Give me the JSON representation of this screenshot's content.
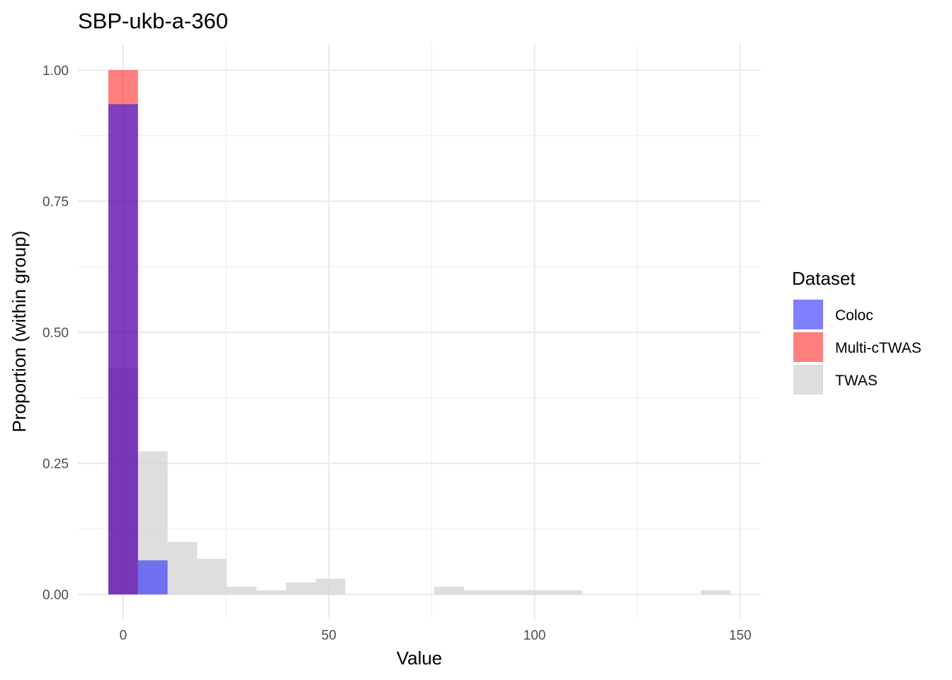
{
  "chart_data": {
    "type": "bar",
    "title": "SBP-ukb-a-360",
    "xlabel": "Value",
    "ylabel": "Proportion (within group)",
    "xlim": [
      -11,
      155
    ],
    "ylim": [
      -0.047,
      1.05
    ],
    "x_ticks": [
      0,
      50,
      100,
      150
    ],
    "x_tick_labels": [
      "0",
      "50",
      "100",
      "150"
    ],
    "y_ticks": [
      0,
      0.25,
      0.5,
      0.75,
      1.0
    ],
    "y_tick_labels": [
      "0.00",
      "0.25",
      "0.50",
      "0.75",
      "1.00"
    ],
    "grid": true,
    "legend": {
      "title": "Dataset",
      "position": "right"
    },
    "bin_width": 7.2,
    "series": [
      {
        "name": "TWAS",
        "color": "#d3d3d3",
        "opacity": 0.75,
        "x": [
          0,
          7.2,
          14.4,
          21.6,
          28.8,
          36,
          43.2,
          50.4,
          79.2,
          86.4,
          93.6,
          100.8,
          108,
          144
        ],
        "values": [
          0.433,
          0.273,
          0.1,
          0.068,
          0.015,
          0.008,
          0.023,
          0.03,
          0.015,
          0.008,
          0.008,
          0.008,
          0.008,
          0.008
        ]
      },
      {
        "name": "Multi-cTWAS",
        "color": "#ff0000",
        "opacity": 0.5,
        "x": [
          0
        ],
        "values": [
          1.0
        ]
      },
      {
        "name": "Coloc",
        "color": "#0000ff",
        "opacity": 0.5,
        "x": [
          0,
          7.2
        ],
        "values": [
          0.935,
          0.065
        ]
      }
    ]
  }
}
